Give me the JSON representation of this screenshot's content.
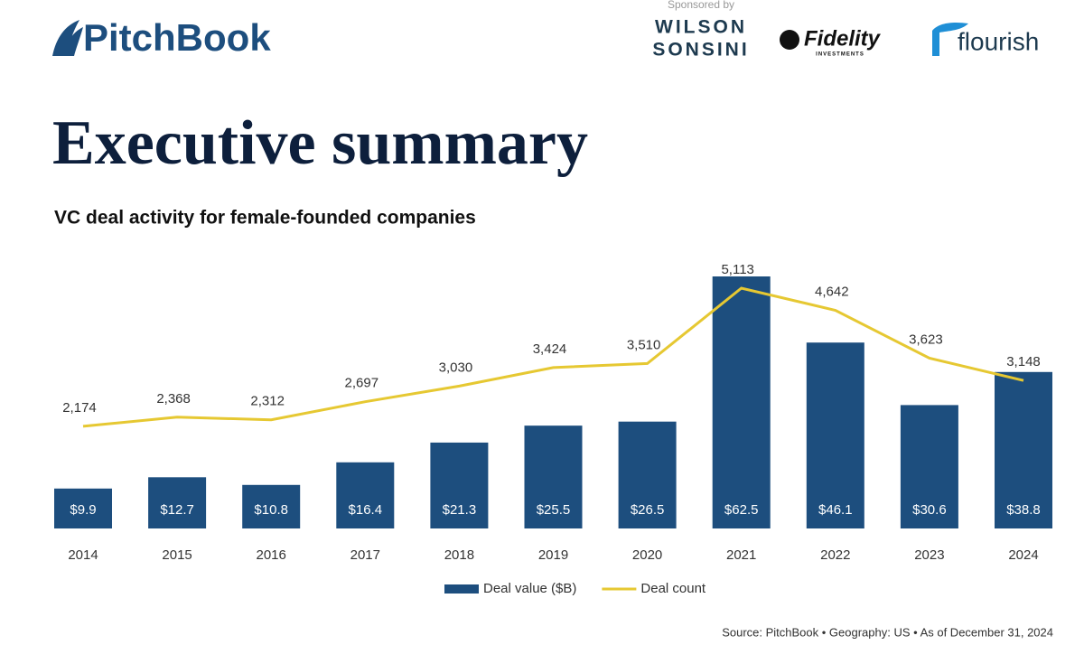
{
  "header": {
    "logo": "PitchBook",
    "sponsored": "Sponsored by",
    "sponsors": [
      "WILSON",
      "SONSINI",
      "Fidelity",
      "INVESTMENTS",
      "flourish"
    ]
  },
  "title": "Executive summary",
  "source": "Source: PitchBook • Geography: US • As of December 31, 2024",
  "chart_data": {
    "type": "bar",
    "title": "VC deal activity for female-founded companies",
    "categories": [
      "2014",
      "2015",
      "2016",
      "2017",
      "2018",
      "2019",
      "2020",
      "2021",
      "2022",
      "2023",
      "2024"
    ],
    "series": [
      {
        "name": "Deal value ($B)",
        "type": "bar",
        "color": "#1d4e7e",
        "values": [
          9.9,
          12.7,
          10.8,
          16.4,
          21.3,
          25.5,
          26.5,
          62.5,
          46.1,
          30.6,
          38.8
        ],
        "value_labels": [
          "$9.9",
          "$12.7",
          "$10.8",
          "$16.4",
          "$21.3",
          "$25.5",
          "$26.5",
          "$62.5",
          "$46.1",
          "$30.6",
          "$38.8"
        ]
      },
      {
        "name": "Deal count",
        "type": "line",
        "axis": "y2",
        "color": "#e6c832",
        "values": [
          2174,
          2368,
          2312,
          2697,
          3030,
          3424,
          3510,
          5113,
          4642,
          3623,
          3148
        ],
        "value_labels": [
          "2,174",
          "2,368",
          "2,312",
          "2,697",
          "3,030",
          "3,424",
          "3,510",
          "5,113",
          "4,642",
          "3,623",
          "3,148"
        ]
      }
    ],
    "legend": "bottom"
  }
}
